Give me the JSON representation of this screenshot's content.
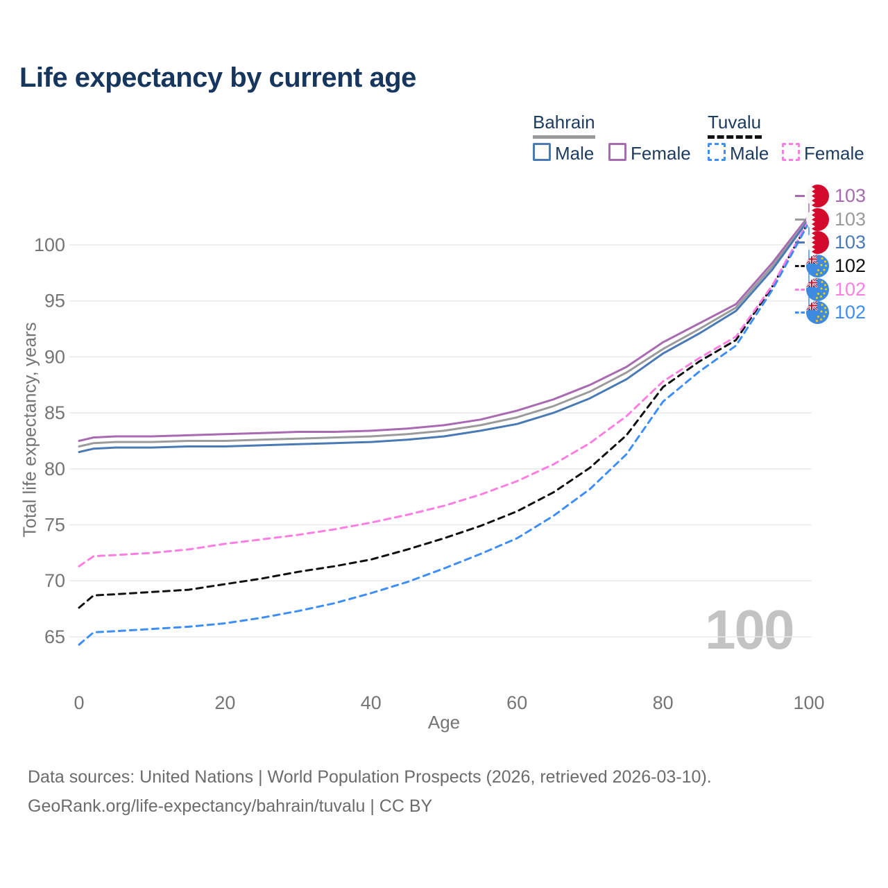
{
  "header": {
    "title": "Life expectancy by current age"
  },
  "legend": {
    "groups": [
      {
        "name": "Bahrain",
        "line_style": "solid",
        "underline_color": "#9a9a9a",
        "items": [
          {
            "label": "Male",
            "color": "#4a7ab5"
          },
          {
            "label": "Female",
            "color": "#a86ab0"
          }
        ]
      },
      {
        "name": "Tuvalu",
        "line_style": "dashed",
        "underline_color": "#111111",
        "items": [
          {
            "label": "Male",
            "color": "#3e8ef7"
          },
          {
            "label": "Female",
            "color": "#fc7ee2"
          }
        ]
      }
    ]
  },
  "chart_data": {
    "type": "line",
    "title": "Life expectancy by current age",
    "xlabel": "Age",
    "ylabel": "Total life expectancy, years",
    "xlim": [
      0,
      100
    ],
    "ylim": [
      61.5,
      103.5
    ],
    "x_ticks": [
      0,
      20,
      40,
      60,
      80,
      100
    ],
    "y_ticks": [
      65,
      70,
      75,
      80,
      85,
      90,
      95,
      100
    ],
    "grid": "horizontal",
    "legend_position": "top-right",
    "watermark": "100",
    "ages": [
      0,
      2,
      5,
      10,
      15,
      20,
      25,
      30,
      35,
      40,
      45,
      50,
      55,
      60,
      65,
      70,
      75,
      80,
      85,
      90,
      95,
      100
    ],
    "series": [
      {
        "name": "Bahrain Female",
        "country": "Bahrain",
        "sex": "Female",
        "flag": "bahrain",
        "color": "#a86ab0",
        "dash": false,
        "end_label": "103",
        "values": [
          82.5,
          82.8,
          82.9,
          82.9,
          83.0,
          83.1,
          83.2,
          83.3,
          83.3,
          83.4,
          83.6,
          83.9,
          84.4,
          85.2,
          86.2,
          87.5,
          89.1,
          91.3,
          93.0,
          94.7,
          98.4,
          102.6
        ]
      },
      {
        "name": "Bahrain Total",
        "country": "Bahrain",
        "sex": "Both",
        "flag": "bahrain",
        "color": "#9b9b9b",
        "dash": false,
        "end_label": "103",
        "values": [
          82.0,
          82.3,
          82.4,
          82.4,
          82.5,
          82.5,
          82.6,
          82.7,
          82.8,
          82.9,
          83.1,
          83.4,
          83.9,
          84.6,
          85.6,
          86.9,
          88.6,
          90.7,
          92.5,
          94.4,
          98.1,
          102.4
        ]
      },
      {
        "name": "Bahrain Male",
        "country": "Bahrain",
        "sex": "Male",
        "flag": "bahrain",
        "color": "#4a7ab5",
        "dash": false,
        "end_label": "103",
        "values": [
          81.5,
          81.8,
          81.9,
          81.9,
          82.0,
          82.0,
          82.1,
          82.2,
          82.3,
          82.4,
          82.6,
          82.9,
          83.4,
          84.0,
          85.0,
          86.3,
          88.0,
          90.3,
          92.1,
          94.1,
          97.8,
          102.3
        ]
      },
      {
        "name": "Tuvalu Total",
        "country": "Tuvalu",
        "sex": "Both",
        "flag": "tuvalu",
        "color": "#111111",
        "dash": true,
        "end_label": "102",
        "values": [
          67.6,
          68.7,
          68.8,
          69.0,
          69.2,
          69.7,
          70.2,
          70.8,
          71.3,
          71.9,
          72.8,
          73.8,
          74.9,
          76.2,
          77.9,
          80.1,
          83.0,
          87.3,
          89.6,
          91.5,
          96.3,
          102.1
        ]
      },
      {
        "name": "Tuvalu Female",
        "country": "Tuvalu",
        "sex": "Female",
        "flag": "tuvalu",
        "color": "#fc7ee2",
        "dash": true,
        "end_label": "102",
        "values": [
          71.3,
          72.2,
          72.3,
          72.5,
          72.8,
          73.3,
          73.7,
          74.1,
          74.6,
          75.2,
          75.9,
          76.7,
          77.7,
          78.9,
          80.4,
          82.3,
          84.7,
          87.8,
          89.9,
          91.8,
          96.4,
          102.2
        ]
      },
      {
        "name": "Tuvalu Male",
        "country": "Tuvalu",
        "sex": "Male",
        "flag": "tuvalu",
        "color": "#3e8ef7",
        "dash": true,
        "end_label": "102",
        "values": [
          64.3,
          65.4,
          65.5,
          65.7,
          65.9,
          66.2,
          66.7,
          67.3,
          68.0,
          68.9,
          69.9,
          71.1,
          72.4,
          73.8,
          75.8,
          78.2,
          81.3,
          86.0,
          88.7,
          91.0,
          96.0,
          102.0
        ]
      }
    ]
  },
  "footer": {
    "line1": "Data sources: United Nations | World Population Prospects (2026, retrieved 2026-03-10).",
    "line2": "GeoRank.org/life-expectancy/bahrain/tuvalu | CC BY"
  }
}
